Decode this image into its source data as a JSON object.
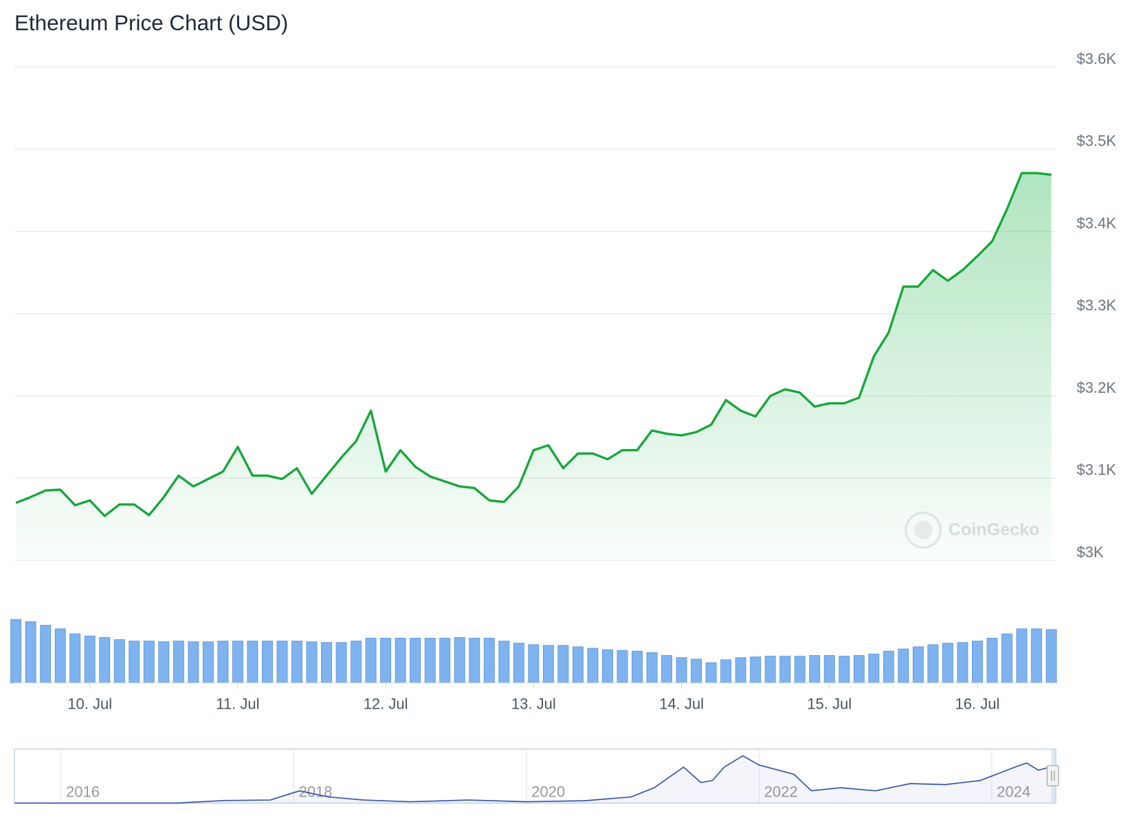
{
  "chart_data": {
    "type": "line",
    "title": "Ethereum Price Chart (USD)",
    "watermark": "CoinGecko",
    "color": "#17a63b",
    "grid": true,
    "xlim": [
      9.49,
      16.53
    ],
    "xticks": [
      {
        "value": 10,
        "label": "10. Jul"
      },
      {
        "value": 11,
        "label": "11. Jul"
      },
      {
        "value": 12,
        "label": "12. Jul"
      },
      {
        "value": 13,
        "label": "13. Jul"
      },
      {
        "value": 14,
        "label": "14. Jul"
      },
      {
        "value": 15,
        "label": "15. Jul"
      },
      {
        "value": 16,
        "label": "16. Jul"
      }
    ],
    "ylim": [
      3000,
      3600
    ],
    "yticks": [
      {
        "value": 3000,
        "label": "$3K"
      },
      {
        "value": 3100,
        "label": "$3.1K"
      },
      {
        "value": 3200,
        "label": "$3.2K"
      },
      {
        "value": 3300,
        "label": "$3.3K"
      },
      {
        "value": 3400,
        "label": "$3.4K"
      },
      {
        "value": 3500,
        "label": "$3.5K"
      },
      {
        "value": 3600,
        "label": "$3.6K"
      }
    ],
    "x": [
      9.5,
      9.6,
      9.7,
      9.8,
      9.9,
      10.0,
      10.1,
      10.2,
      10.3,
      10.4,
      10.5,
      10.6,
      10.7,
      10.8,
      10.9,
      11.0,
      11.1,
      11.2,
      11.3,
      11.4,
      11.5,
      11.6,
      11.7,
      11.8,
      11.9,
      12.0,
      12.1,
      12.2,
      12.3,
      12.4,
      12.5,
      12.6,
      12.7,
      12.8,
      12.9,
      13.0,
      13.1,
      13.2,
      13.3,
      13.4,
      13.5,
      13.6,
      13.7,
      13.8,
      13.9,
      14.0,
      14.1,
      14.2,
      14.3,
      14.4,
      14.5,
      14.6,
      14.7,
      14.8,
      14.9,
      15.0,
      15.1,
      15.2,
      15.3,
      15.4,
      15.5,
      15.6,
      15.7,
      15.8,
      15.9,
      16.0,
      16.1,
      16.2,
      16.3,
      16.4,
      16.5
    ],
    "values": [
      3070,
      3077,
      3085,
      3086,
      3067,
      3073,
      3054,
      3068,
      3068,
      3055,
      3077,
      3103,
      3090,
      3099,
      3108,
      3138,
      3103,
      3103,
      3099,
      3112,
      3081,
      3103,
      3125,
      3145,
      3182,
      3108,
      3134,
      3114,
      3102,
      3096,
      3090,
      3088,
      3073,
      3071,
      3090,
      3134,
      3140,
      3112,
      3130,
      3130,
      3123,
      3134,
      3134,
      3158,
      3154,
      3152,
      3156,
      3165,
      3195,
      3182,
      3175,
      3200,
      3208,
      3204,
      3187,
      3191,
      3191,
      3198,
      3248,
      3277,
      3333,
      3333,
      3353,
      3340,
      3353,
      3370,
      3388,
      3427,
      3471,
      3471,
      3469
    ],
    "volume": [
      88,
      85,
      80,
      75,
      68,
      65,
      63,
      60,
      58,
      58,
      57,
      58,
      57,
      57,
      58,
      58,
      58,
      58,
      58,
      58,
      57,
      56,
      56,
      58,
      62,
      62,
      62,
      62,
      62,
      62,
      63,
      62,
      62,
      58,
      55,
      53,
      52,
      52,
      50,
      48,
      46,
      45,
      44,
      42,
      38,
      35,
      33,
      28,
      32,
      35,
      36,
      37,
      37,
      37,
      38,
      38,
      37,
      38,
      40,
      44,
      47,
      50,
      53,
      55,
      56,
      58,
      62,
      68,
      75,
      75,
      74
    ],
    "volume_color": "#7fb3ef",
    "navigator": {
      "color": "#3355aa",
      "xlim": [
        2015.6,
        2024.55
      ],
      "ylim": [
        0,
        4900
      ],
      "xticks": [
        2016,
        2018,
        2020,
        2022,
        2024
      ],
      "x": [
        2015.6,
        2016,
        2017,
        2017.4,
        2017.8,
        2018.05,
        2018.3,
        2018.6,
        2019.0,
        2019.5,
        2020.0,
        2020.5,
        2020.9,
        2021.1,
        2021.35,
        2021.5,
        2021.6,
        2021.7,
        2021.86,
        2022.0,
        2022.3,
        2022.45,
        2022.7,
        2023.0,
        2023.3,
        2023.6,
        2023.9,
        2024.2,
        2024.3,
        2024.4,
        2024.5,
        2024.55
      ],
      "values": [
        1,
        10,
        10,
        250,
        300,
        1200,
        600,
        300,
        130,
        300,
        130,
        230,
        600,
        1500,
        3500,
        2000,
        2200,
        3500,
        4600,
        3700,
        2800,
        1200,
        1500,
        1200,
        1900,
        1800,
        2200,
        3500,
        3900,
        3200,
        3500,
        3450
      ]
    }
  }
}
